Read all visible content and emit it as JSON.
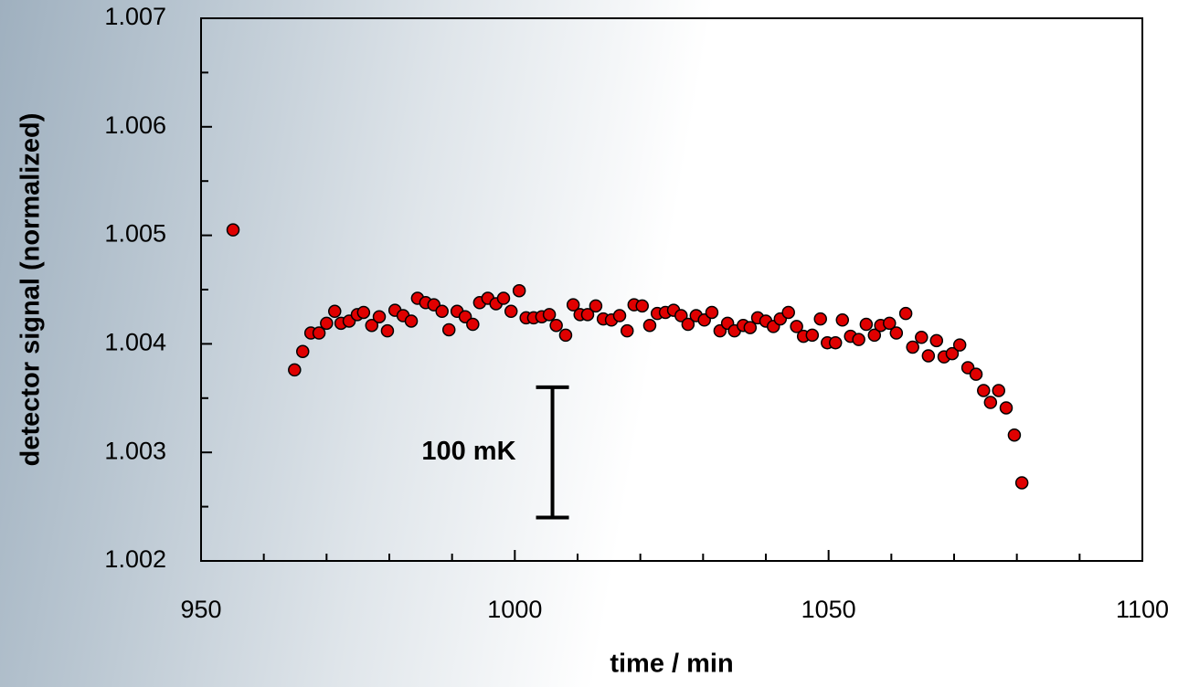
{
  "chart_data": {
    "type": "scatter",
    "x_label": "time / min",
    "y_label": "detector signal (normalized)",
    "color": "#e00000",
    "xlim": [
      950,
      1100
    ],
    "xticks": [
      950,
      1000,
      1050,
      1100
    ],
    "xminor_ticks": [
      960,
      970,
      980,
      990,
      1010,
      1020,
      1030,
      1040,
      1060,
      1070,
      1080,
      1090
    ],
    "ylim": [
      1.002,
      1.007
    ],
    "yticks": [
      1.002,
      1.003,
      1.004,
      1.005,
      1.006,
      1.007
    ],
    "yminor_ticks": [
      1.0025,
      1.0035,
      1.0045,
      1.0055,
      1.0065
    ],
    "annotation": {
      "text": "100 mK",
      "x": 1006,
      "y_low": 1.0024,
      "y_high": 1.0036
    },
    "x": [
      955.1,
      964.9,
      966.2,
      967.5,
      968.8,
      970.0,
      971.3,
      972.3,
      973.6,
      974.9,
      975.9,
      977.2,
      978.4,
      979.7,
      980.9,
      982.2,
      983.5,
      984.5,
      985.8,
      987.1,
      988.4,
      989.5,
      990.8,
      992.1,
      993.3,
      994.4,
      995.7,
      997.0,
      998.2,
      999.4,
      1000.7,
      1001.8,
      1003.0,
      1004.3,
      1005.5,
      1006.6,
      1008.1,
      1009.3,
      1010.4,
      1011.6,
      1012.9,
      1014.1,
      1015.4,
      1016.7,
      1017.9,
      1019.0,
      1020.3,
      1021.5,
      1022.7,
      1024.0,
      1025.3,
      1026.5,
      1027.6,
      1028.9,
      1030.2,
      1031.4,
      1032.7,
      1033.9,
      1035.0,
      1036.4,
      1037.5,
      1038.7,
      1040.0,
      1041.2,
      1042.3,
      1043.6,
      1044.9,
      1046.0,
      1047.4,
      1048.7,
      1049.8,
      1051.1,
      1052.2,
      1053.5,
      1054.8,
      1056.0,
      1057.3,
      1058.3,
      1059.7,
      1060.8,
      1062.3,
      1063.4,
      1064.8,
      1065.9,
      1067.2,
      1068.4,
      1069.7,
      1070.9,
      1072.2,
      1073.5,
      1074.7,
      1075.8,
      1077.1,
      1078.3,
      1079.6,
      1080.8
    ],
    "values": [
      1.00505,
      1.00376,
      1.00393,
      1.0041,
      1.0041,
      1.00419,
      1.0043,
      1.00419,
      1.00421,
      1.00427,
      1.00429,
      1.00417,
      1.00425,
      1.00412,
      1.00431,
      1.00426,
      1.00421,
      1.00442,
      1.00438,
      1.00436,
      1.0043,
      1.00413,
      1.0043,
      1.00425,
      1.00418,
      1.00438,
      1.00442,
      1.00437,
      1.00442,
      1.0043,
      1.00449,
      1.00424,
      1.00424,
      1.00425,
      1.00427,
      1.00417,
      1.00408,
      1.00436,
      1.00427,
      1.00427,
      1.00435,
      1.00423,
      1.00422,
      1.00426,
      1.00412,
      1.00436,
      1.00435,
      1.00417,
      1.00428,
      1.00429,
      1.00431,
      1.00426,
      1.00418,
      1.00426,
      1.00422,
      1.00429,
      1.00412,
      1.00419,
      1.00412,
      1.00417,
      1.00415,
      1.00424,
      1.00421,
      1.00416,
      1.00423,
      1.00429,
      1.00416,
      1.00407,
      1.00408,
      1.00423,
      1.00401,
      1.00401,
      1.00422,
      1.00407,
      1.00404,
      1.00418,
      1.00408,
      1.00417,
      1.00419,
      1.0041,
      1.00428,
      1.00397,
      1.00406,
      1.00389,
      1.00403,
      1.00388,
      1.00391,
      1.00399,
      1.00378,
      1.00372,
      1.00357,
      1.00346,
      1.00357,
      1.00341,
      1.00316,
      1.00272
    ]
  }
}
